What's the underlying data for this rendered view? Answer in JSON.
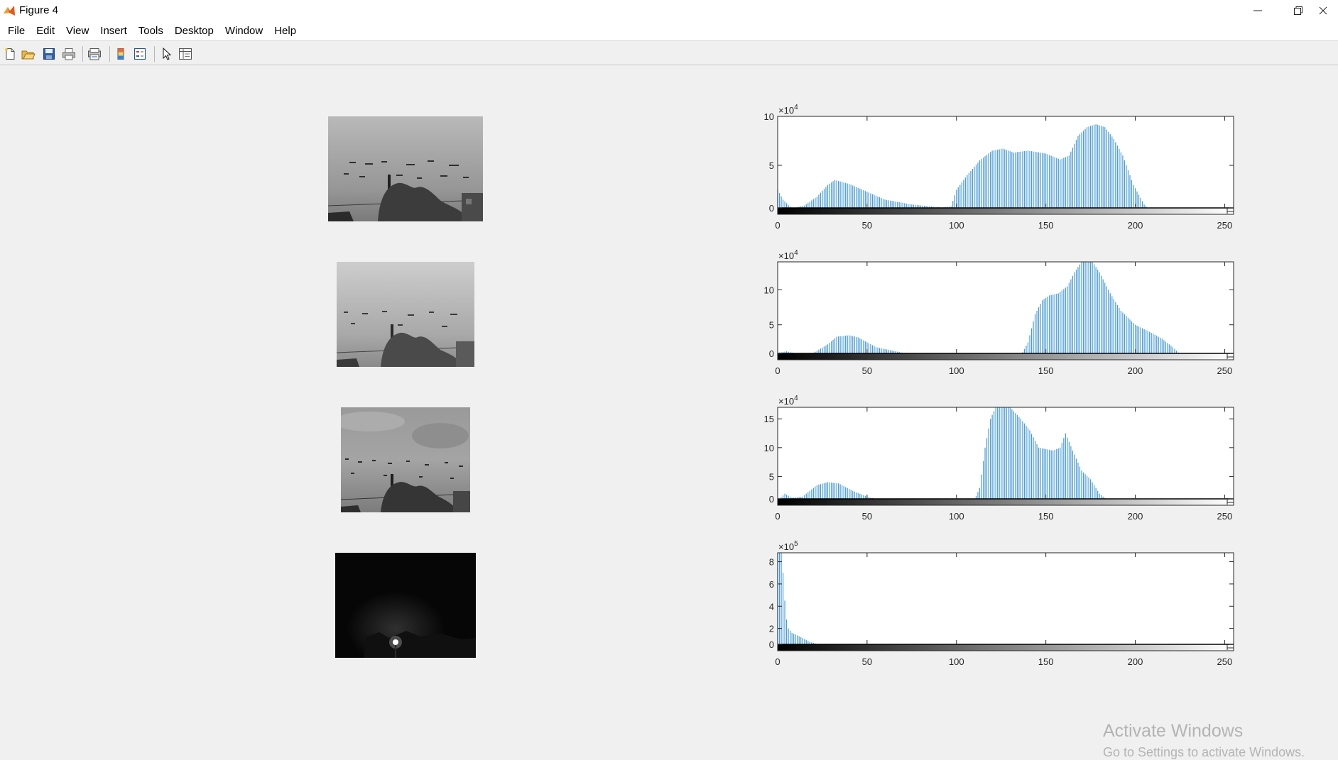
{
  "window": {
    "title": "Figure 4",
    "app_icon": "matlab-logo-icon",
    "controls": [
      "minimize-icon",
      "restore-icon",
      "close-icon"
    ]
  },
  "menu": [
    "File",
    "Edit",
    "View",
    "Insert",
    "Tools",
    "Desktop",
    "Window",
    "Help"
  ],
  "toolbar": [
    "new-figure-icon",
    "open-file-icon",
    "save-icon",
    "print-icon",
    "print-preview-icon",
    "insert-colorbar-icon",
    "insert-legend-icon",
    "edit-plot-icon",
    "open-property-inspector-icon"
  ],
  "images": [
    {
      "kind": "grayscale-photo",
      "description_tint": "#a9a9a9"
    },
    {
      "kind": "grayscale-photo",
      "description_tint": "#b8b8b8"
    },
    {
      "kind": "grayscale-photo",
      "description_tint": "#9a9a9a"
    },
    {
      "kind": "grayscale-photo",
      "description_tint": "#080808"
    }
  ],
  "chart_data": [
    {
      "type": "bar",
      "exponent_label": "×10",
      "exponent": "4",
      "xlim": [
        0,
        255
      ],
      "ylim": [
        0,
        10
      ],
      "x_ticks": [
        "0",
        "50",
        "100",
        "150",
        "200",
        "250"
      ],
      "y_ticks": [
        "0",
        "5",
        "10"
      ],
      "bar_color": "#4a9bd6",
      "anchors": [
        [
          0,
          2.5
        ],
        [
          3,
          1.5
        ],
        [
          8,
          0.6
        ],
        [
          15,
          0.9
        ],
        [
          22,
          1.8
        ],
        [
          28,
          3.0
        ],
        [
          32,
          3.5
        ],
        [
          40,
          3.1
        ],
        [
          50,
          2.3
        ],
        [
          60,
          1.5
        ],
        [
          75,
          1.0
        ],
        [
          92,
          0.7
        ],
        [
          97,
          0.8
        ],
        [
          100,
          2.5
        ],
        [
          106,
          4.0
        ],
        [
          113,
          5.5
        ],
        [
          120,
          6.5
        ],
        [
          126,
          6.7
        ],
        [
          132,
          6.3
        ],
        [
          140,
          6.5
        ],
        [
          150,
          6.2
        ],
        [
          158,
          5.6
        ],
        [
          163,
          6.0
        ],
        [
          168,
          8.0
        ],
        [
          173,
          8.9
        ],
        [
          178,
          9.2
        ],
        [
          183,
          8.9
        ],
        [
          188,
          7.7
        ],
        [
          193,
          6.0
        ],
        [
          199,
          3.0
        ],
        [
          205,
          1.0
        ],
        [
          210,
          0.2
        ],
        [
          212,
          0
        ],
        [
          255,
          0
        ]
      ]
    },
    {
      "type": "bar",
      "exponent_label": "×10",
      "exponent": "4",
      "xlim": [
        0,
        255
      ],
      "ylim": [
        0,
        14
      ],
      "x_ticks": [
        "0",
        "50",
        "100",
        "150",
        "200",
        "250"
      ],
      "y_ticks": [
        "0",
        "5",
        "10"
      ],
      "bar_color": "#4a9bd6",
      "anchors": [
        [
          0,
          1.0
        ],
        [
          5,
          1.2
        ],
        [
          12,
          0.8
        ],
        [
          20,
          1.0
        ],
        [
          28,
          2.2
        ],
        [
          33,
          3.3
        ],
        [
          40,
          3.5
        ],
        [
          45,
          3.2
        ],
        [
          55,
          1.8
        ],
        [
          70,
          1.0
        ],
        [
          90,
          0.6
        ],
        [
          120,
          0.5
        ],
        [
          136,
          0.6
        ],
        [
          140,
          2.5
        ],
        [
          144,
          6.5
        ],
        [
          148,
          8.5
        ],
        [
          152,
          9.2
        ],
        [
          157,
          9.5
        ],
        [
          162,
          10.5
        ],
        [
          166,
          12.5
        ],
        [
          170,
          14.0
        ],
        [
          176,
          14.0
        ],
        [
          180,
          12.5
        ],
        [
          186,
          9.5
        ],
        [
          192,
          7.0
        ],
        [
          200,
          5.0
        ],
        [
          208,
          4.0
        ],
        [
          215,
          3.0
        ],
        [
          221,
          1.8
        ],
        [
          225,
          0.8
        ],
        [
          227,
          0
        ],
        [
          255,
          0
        ]
      ]
    },
    {
      "type": "bar",
      "exponent_label": "×10",
      "exponent": "4",
      "xlim": [
        0,
        255
      ],
      "ylim": [
        0,
        17
      ],
      "x_ticks": [
        "0",
        "50",
        "100",
        "150",
        "200",
        "250"
      ],
      "y_ticks": [
        "0",
        "5",
        "10",
        "15"
      ],
      "bar_color": "#4a9bd6",
      "anchors": [
        [
          0,
          0.8
        ],
        [
          4,
          2.0
        ],
        [
          8,
          1.3
        ],
        [
          14,
          1.5
        ],
        [
          22,
          3.5
        ],
        [
          28,
          4.0
        ],
        [
          34,
          3.8
        ],
        [
          42,
          2.5
        ],
        [
          50,
          1.5
        ],
        [
          58,
          0.8
        ],
        [
          80,
          0.6
        ],
        [
          104,
          0.5
        ],
        [
          110,
          0.9
        ],
        [
          113,
          3.0
        ],
        [
          116,
          10.0
        ],
        [
          119,
          15.0
        ],
        [
          122,
          17.0
        ],
        [
          130,
          17.0
        ],
        [
          136,
          15.0
        ],
        [
          141,
          13.0
        ],
        [
          146,
          10.0
        ],
        [
          154,
          9.5
        ],
        [
          158,
          10.0
        ],
        [
          161,
          12.5
        ],
        [
          165,
          9.5
        ],
        [
          170,
          6.0
        ],
        [
          175,
          4.5
        ],
        [
          180,
          2.0
        ],
        [
          186,
          0.5
        ],
        [
          192,
          0
        ],
        [
          255,
          0
        ]
      ]
    },
    {
      "type": "bar",
      "exponent_label": "×10",
      "exponent": "5",
      "xlim": [
        0,
        255
      ],
      "ylim": [
        0,
        8.8
      ],
      "x_ticks": [
        "0",
        "50",
        "100",
        "150",
        "200",
        "250"
      ],
      "y_ticks": [
        "0",
        "2",
        "4",
        "6",
        "8"
      ],
      "bar_color": "#4a9bd6",
      "anchors": [
        [
          0,
          8.8
        ],
        [
          2,
          8.8
        ],
        [
          3,
          7.0
        ],
        [
          4,
          4.5
        ],
        [
          5,
          2.8
        ],
        [
          6,
          2.0
        ],
        [
          8,
          1.6
        ],
        [
          12,
          1.3
        ],
        [
          18,
          0.8
        ],
        [
          25,
          0.45
        ],
        [
          35,
          0.2
        ],
        [
          45,
          0.05
        ],
        [
          55,
          0
        ],
        [
          255,
          0
        ]
      ]
    }
  ],
  "watermark": {
    "line1": "Activate Windows",
    "line2": "Go to Settings to activate Windows."
  }
}
